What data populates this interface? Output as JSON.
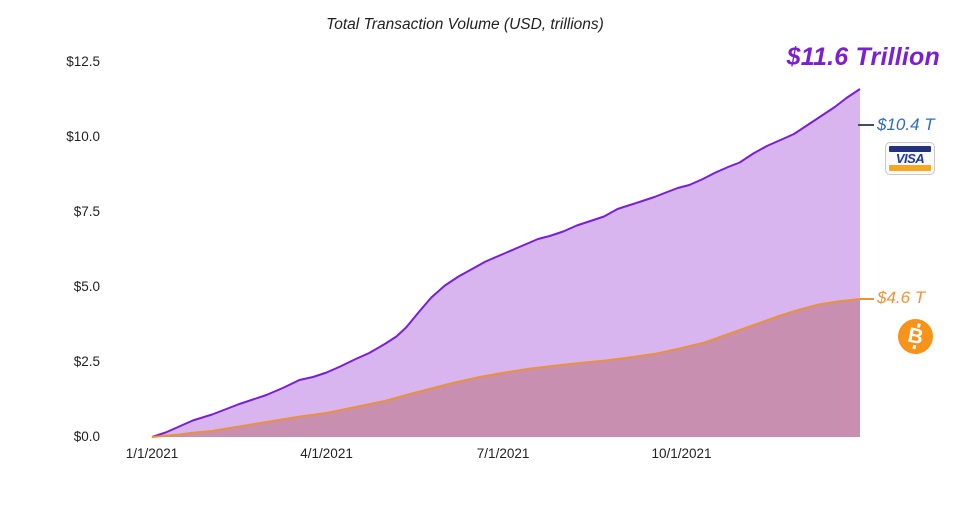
{
  "chart_data": {
    "type": "area",
    "title": "Total Transaction Volume (USD, trillions)",
    "xlabel": "",
    "ylabel": "",
    "grid": false,
    "legend_position": "none (direct labels at right edge)",
    "x_axis": {
      "unit": "date (2021)",
      "tick_labels": [
        "1/1/2021",
        "4/1/2021",
        "7/1/2021",
        "10/1/2021"
      ],
      "tick_days_from_jan1": [
        0,
        90,
        181,
        273
      ],
      "range_days": [
        0,
        365
      ]
    },
    "y_axis": {
      "tick_labels": [
        "$0.0",
        "$2.5",
        "$5.0",
        "$7.5",
        "$10.0",
        "$12.5"
      ],
      "tick_values": [
        0,
        2.5,
        5.0,
        7.5,
        10.0,
        12.5
      ],
      "range": [
        0,
        12.5
      ]
    },
    "series": [
      {
        "name": "total_cumulative_volume_purple",
        "end_value_trillions": 11.6,
        "line_color": "#7b1fd2",
        "fill_color": "#d8b5ef",
        "dash_to_label": false,
        "points_day_value": [
          [
            0,
            0
          ],
          [
            7,
            0.15
          ],
          [
            14,
            0.35
          ],
          [
            21,
            0.55
          ],
          [
            31,
            0.75
          ],
          [
            45,
            1.1
          ],
          [
            59,
            1.4
          ],
          [
            68,
            1.65
          ],
          [
            76,
            1.9
          ],
          [
            83,
            2.0
          ],
          [
            90,
            2.15
          ],
          [
            97,
            2.35
          ],
          [
            105,
            2.6
          ],
          [
            112,
            2.8
          ],
          [
            120,
            3.1
          ],
          [
            126,
            3.35
          ],
          [
            131,
            3.65
          ],
          [
            138,
            4.2
          ],
          [
            144,
            4.65
          ],
          [
            151,
            5.05
          ],
          [
            158,
            5.35
          ],
          [
            165,
            5.6
          ],
          [
            172,
            5.85
          ],
          [
            181,
            6.1
          ],
          [
            190,
            6.35
          ],
          [
            199,
            6.6
          ],
          [
            205,
            6.7
          ],
          [
            212,
            6.85
          ],
          [
            219,
            7.05
          ],
          [
            226,
            7.2
          ],
          [
            233,
            7.35
          ],
          [
            240,
            7.6
          ],
          [
            252,
            7.85
          ],
          [
            259,
            8.0
          ],
          [
            265,
            8.15
          ],
          [
            271,
            8.3
          ],
          [
            277,
            8.4
          ],
          [
            284,
            8.6
          ],
          [
            290,
            8.8
          ],
          [
            297,
            9.0
          ],
          [
            303,
            9.15
          ],
          [
            310,
            9.45
          ],
          [
            317,
            9.7
          ],
          [
            324,
            9.9
          ],
          [
            331,
            10.1
          ],
          [
            338,
            10.4
          ],
          [
            345,
            10.7
          ],
          [
            352,
            11.0
          ],
          [
            358,
            11.3
          ],
          [
            365,
            11.6
          ]
        ]
      },
      {
        "name": "bitcoin_cumulative_volume_orange",
        "end_value_trillions": 4.6,
        "line_color": "#e8923c",
        "fill_color": "#c98fb0",
        "dash_to_label": true,
        "points_day_value": [
          [
            0,
            0
          ],
          [
            7,
            0.04
          ],
          [
            14,
            0.08
          ],
          [
            21,
            0.14
          ],
          [
            31,
            0.2
          ],
          [
            45,
            0.35
          ],
          [
            59,
            0.5
          ],
          [
            76,
            0.68
          ],
          [
            90,
            0.8
          ],
          [
            105,
            1.0
          ],
          [
            120,
            1.2
          ],
          [
            134,
            1.45
          ],
          [
            143,
            1.6
          ],
          [
            155,
            1.8
          ],
          [
            169,
            2.0
          ],
          [
            182,
            2.15
          ],
          [
            195,
            2.28
          ],
          [
            208,
            2.38
          ],
          [
            221,
            2.47
          ],
          [
            234,
            2.55
          ],
          [
            246,
            2.65
          ],
          [
            260,
            2.78
          ],
          [
            272,
            2.95
          ],
          [
            285,
            3.15
          ],
          [
            298,
            3.45
          ],
          [
            311,
            3.75
          ],
          [
            324,
            4.05
          ],
          [
            334,
            4.25
          ],
          [
            344,
            4.42
          ],
          [
            354,
            4.52
          ],
          [
            365,
            4.6
          ]
        ]
      }
    ],
    "annotations": {
      "total": {
        "text": "$11.6 Trillion",
        "color": "#7b1fd2"
      },
      "visa": {
        "text": "$10.4 T",
        "value_trillions": 10.4,
        "color": "#2f6fb7",
        "dash_color": "#3f4e66",
        "logo_text": "VISA"
      },
      "bitcoin": {
        "text": "$4.6 T",
        "value_trillions": 4.6,
        "color": "#f0923a",
        "symbol": "B"
      }
    }
  }
}
